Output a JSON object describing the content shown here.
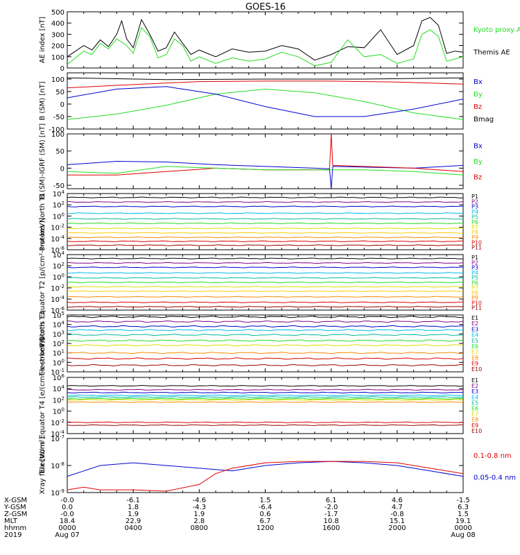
{
  "title": "GOES-16",
  "time_ticks": [
    "0000",
    "0400",
    "0800",
    "1200",
    "1600",
    "2000",
    "0000"
  ],
  "date_ticks": [
    {
      "label": "Aug 07",
      "index": 0
    },
    {
      "label": "Aug 08",
      "index": 6
    }
  ],
  "row_labels": [
    "X-GSM",
    "Y-GSM",
    "Z-GSM",
    "MLT",
    "hhmm",
    "2019"
  ],
  "ephemeris": {
    "X-GSM": [
      "-0.0",
      "-6.1",
      "-4.6",
      "1.5",
      "6.1",
      "4.6",
      "-1.5"
    ],
    "Y-GSM": [
      "0.0",
      "1.8",
      "-4.3",
      "-6.4",
      "-2.0",
      "4.7",
      "6.3"
    ],
    "Z-GSM": [
      "-0.0",
      "1.9",
      "1.9",
      "0.6",
      "-1.7",
      "-0.8",
      "1.5"
    ],
    "MLT": [
      "18.4",
      "22.9",
      "2.8",
      "6.7",
      "10.8",
      "15.1",
      "19.1"
    ]
  },
  "colors": {
    "black": "#000000",
    "green": "#22dd22",
    "blue": "#0000cc",
    "red": "#dd0000",
    "purple": "#880088",
    "cyan": "#00bbee",
    "teal": "#00bb99",
    "yellow": "#dddd00",
    "orange": "#ff8800",
    "darkred": "#990000"
  },
  "chart_data": [
    {
      "id": "ae",
      "type": "line",
      "ylabel": "AE index [nT]",
      "ylim": [
        0,
        500
      ],
      "yticks": [
        "0",
        "100",
        "200",
        "300",
        "400",
        "500"
      ],
      "legend": [
        {
          "name": "Kyoto proxy AE",
          "color": "#22dd22"
        },
        {
          "name": "Themis AE",
          "color": "#000000"
        }
      ],
      "series": [
        {
          "name": "Themis AE",
          "color": "#000000",
          "x": [
            0,
            1,
            1.5,
            2,
            2.5,
            3,
            3.3,
            3.6,
            4,
            4.5,
            5,
            5.5,
            6,
            6.5,
            7,
            7.5,
            8,
            9,
            10,
            11,
            12,
            13,
            14,
            15,
            16,
            17,
            18,
            19,
            20,
            21,
            21.5,
            22,
            22.5,
            23,
            23.5,
            24
          ],
          "y": [
            100,
            200,
            160,
            250,
            190,
            300,
            420,
            260,
            180,
            430,
            300,
            150,
            180,
            320,
            220,
            120,
            160,
            100,
            170,
            140,
            150,
            200,
            170,
            70,
            120,
            190,
            180,
            340,
            120,
            200,
            420,
            450,
            380,
            130,
            150,
            140
          ]
        },
        {
          "name": "Kyoto proxy AE",
          "color": "#22dd22",
          "x": [
            0,
            1,
            1.5,
            2,
            2.5,
            3,
            3.3,
            3.6,
            4,
            4.5,
            5,
            5.5,
            6,
            6.5,
            7,
            7.5,
            8,
            9,
            10,
            11,
            12,
            13,
            14,
            15,
            16,
            17,
            18,
            19,
            20,
            21,
            21.5,
            22,
            22.5,
            23,
            23.5,
            24
          ],
          "y": [
            30,
            150,
            120,
            220,
            170,
            260,
            230,
            200,
            130,
            360,
            280,
            90,
            120,
            260,
            200,
            60,
            100,
            40,
            90,
            60,
            80,
            140,
            100,
            20,
            50,
            250,
            100,
            120,
            40,
            80,
            300,
            340,
            280,
            60,
            80,
            100
          ]
        }
      ]
    },
    {
      "id": "bsm",
      "type": "line",
      "ylabel": "B (SM) [nT]",
      "ylim": [
        -100,
        125
      ],
      "yticks": [
        "-100",
        "-50",
        "0",
        "50",
        "100"
      ],
      "legend": [
        {
          "name": "Bx",
          "color": "#0000cc"
        },
        {
          "name": "By",
          "color": "#22dd22"
        },
        {
          "name": "Bz",
          "color": "#dd0000"
        },
        {
          "name": "Bmag",
          "color": "#000000"
        }
      ],
      "series": [
        {
          "name": "Bmag",
          "color": "#000000",
          "x": [
            0,
            6,
            12,
            18,
            24
          ],
          "y": [
            105,
            98,
            100,
            100,
            105
          ]
        },
        {
          "name": "Bz",
          "color": "#dd0000",
          "x": [
            0,
            4,
            8,
            12,
            16,
            20,
            24
          ],
          "y": [
            65,
            78,
            90,
            92,
            92,
            88,
            80
          ]
        },
        {
          "name": "By",
          "color": "#22dd22",
          "x": [
            0,
            3,
            6,
            9,
            12,
            15,
            18,
            21,
            24
          ],
          "y": [
            -62,
            -40,
            -5,
            40,
            60,
            45,
            10,
            -35,
            -62
          ]
        },
        {
          "name": "Bx",
          "color": "#0000cc",
          "x": [
            0,
            3,
            6,
            9,
            12,
            15,
            18,
            21,
            24
          ],
          "y": [
            25,
            60,
            70,
            40,
            -10,
            -50,
            -50,
            -20,
            20
          ]
        }
      ]
    },
    {
      "id": "bigrf",
      "type": "line",
      "ylabel": "B (SM)-IGRF (SM) [nT]",
      "ylim": [
        -60,
        100
      ],
      "yticks": [
        "-50",
        "0",
        "50",
        "100"
      ],
      "legend": [
        {
          "name": "Bx",
          "color": "#0000cc"
        },
        {
          "name": "By",
          "color": "#22dd22"
        },
        {
          "name": "Bz",
          "color": "#dd0000"
        }
      ],
      "series": [
        {
          "name": "Bx",
          "color": "#0000cc",
          "x": [
            0,
            3,
            6,
            9,
            12,
            15,
            15.9,
            16,
            16.1,
            18,
            21,
            24
          ],
          "y": [
            10,
            20,
            18,
            10,
            5,
            0,
            -2,
            -60,
            5,
            3,
            0,
            8
          ]
        },
        {
          "name": "Bz",
          "color": "#dd0000",
          "x": [
            0,
            3,
            6,
            9,
            12,
            15,
            15.9,
            16,
            16.1,
            18,
            21,
            24
          ],
          "y": [
            -20,
            -20,
            -10,
            0,
            -5,
            -5,
            -5,
            100,
            8,
            5,
            0,
            -10
          ]
        },
        {
          "name": "By",
          "color": "#22dd22",
          "x": [
            0,
            3,
            6,
            9,
            12,
            15,
            18,
            21,
            24
          ],
          "y": [
            -10,
            -15,
            5,
            0,
            -5,
            -5,
            -5,
            -10,
            -20
          ]
        }
      ]
    },
    {
      "id": "protons_t1",
      "type": "line",
      "ylabel": "Protons North T1",
      "yscale": "log",
      "ylim_exp": [
        -6,
        4
      ],
      "yticks": [
        "10^4",
        "10^2",
        "10^0",
        "10^-2",
        "10^-4",
        "10^-6"
      ],
      "legend_names": [
        "P1",
        "P2",
        "P3",
        "P4",
        "P5",
        "P6",
        "P7",
        "P8",
        "P9",
        "P10",
        "P11"
      ],
      "levels_exp": [
        3.3,
        2.5,
        1.7,
        0.5,
        -0.5,
        -1.3,
        -2.2,
        -3.0,
        -3.8,
        -4.5,
        -5.2
      ]
    },
    {
      "id": "protons_t2",
      "type": "line",
      "ylabel": "Protons Equator T2 [p/(cm²-s-sr-keV)]",
      "yscale": "log",
      "ylim_exp": [
        -6,
        4
      ],
      "yticks": [
        "10^4",
        "10^2",
        "10^0",
        "10^-2",
        "10^-4",
        "10^-6"
      ],
      "legend_names": [
        "P1",
        "P2",
        "P3",
        "P4",
        "P5",
        "P6",
        "P7",
        "P8",
        "P9",
        "P10",
        "P11"
      ],
      "levels_exp": [
        3.3,
        2.5,
        1.7,
        0.7,
        -0.2,
        -1.0,
        -1.8,
        -2.6,
        -3.6,
        -4.6,
        -5.4
      ]
    },
    {
      "id": "electrons_t3",
      "type": "line",
      "ylabel": "Electrons North T3",
      "yscale": "log",
      "ylim_exp": [
        -1,
        5
      ],
      "yticks": [
        "10^5",
        "10^4",
        "10^3",
        "10^2",
        "10^1",
        "10^0",
        "10^-1"
      ],
      "legend_names": [
        "E1",
        "E2",
        "E3",
        "E4",
        "E5",
        "E6",
        "E7",
        "E8",
        "E9",
        "E10"
      ],
      "levels_exp": [
        4.8,
        4.3,
        3.8,
        3.4,
        2.9,
        2.3,
        1.8,
        1.0,
        0.4,
        -0.3
      ]
    },
    {
      "id": "electrons_t4",
      "type": "line",
      "ylabel": "Electrons Equator T4 [e/(cm²-s-sr-keV)]",
      "yscale": "log",
      "ylim_exp": [
        -4,
        6
      ],
      "yticks": [
        "10^6",
        "10^4",
        "10^2",
        "10^0",
        "10^-2",
        "10^-4"
      ],
      "legend_names": [
        "E1",
        "E2",
        "E3",
        "E4",
        "E5",
        "E6",
        "E7",
        "E8",
        "E9",
        "E10"
      ],
      "levels_exp": [
        4.5,
        3.8,
        3.3,
        2.8,
        2.5,
        2.2,
        2.0,
        1.6,
        -2.0,
        -2.5
      ]
    },
    {
      "id": "xray",
      "type": "line",
      "ylabel": "Xray flux [W/m²]",
      "yscale": "log",
      "ylim_exp": [
        -9,
        -7
      ],
      "yticks": [
        "10^-7",
        "10^-8",
        "10^-9"
      ],
      "legend": [
        {
          "name": "0.1-0.8 nm",
          "color": "#dd0000"
        },
        {
          "name": "0.05-0.4 nm",
          "color": "#0000cc"
        }
      ],
      "series": [
        {
          "name": "0.05-0.4 nm",
          "color": "#0000cc",
          "x": [
            0,
            1,
            2,
            4,
            6,
            8,
            10,
            12,
            14,
            16,
            18,
            20,
            22,
            24
          ],
          "y": [
            -8.4,
            -8.2,
            -8.0,
            -7.9,
            -8.0,
            -8.1,
            -8.2,
            -8.0,
            -7.9,
            -7.85,
            -7.9,
            -8.0,
            -8.2,
            -8.4
          ]
        },
        {
          "name": "0.1-0.8 nm",
          "color": "#dd0000",
          "x": [
            0,
            1,
            2,
            4,
            6,
            8,
            9,
            10,
            12,
            14,
            16,
            18,
            20,
            22,
            24
          ],
          "y": [
            -8.9,
            -8.8,
            -8.9,
            -8.9,
            -8.95,
            -8.7,
            -8.3,
            -8.1,
            -7.9,
            -7.85,
            -7.85,
            -7.85,
            -7.9,
            -8.1,
            -8.3
          ]
        }
      ]
    }
  ]
}
